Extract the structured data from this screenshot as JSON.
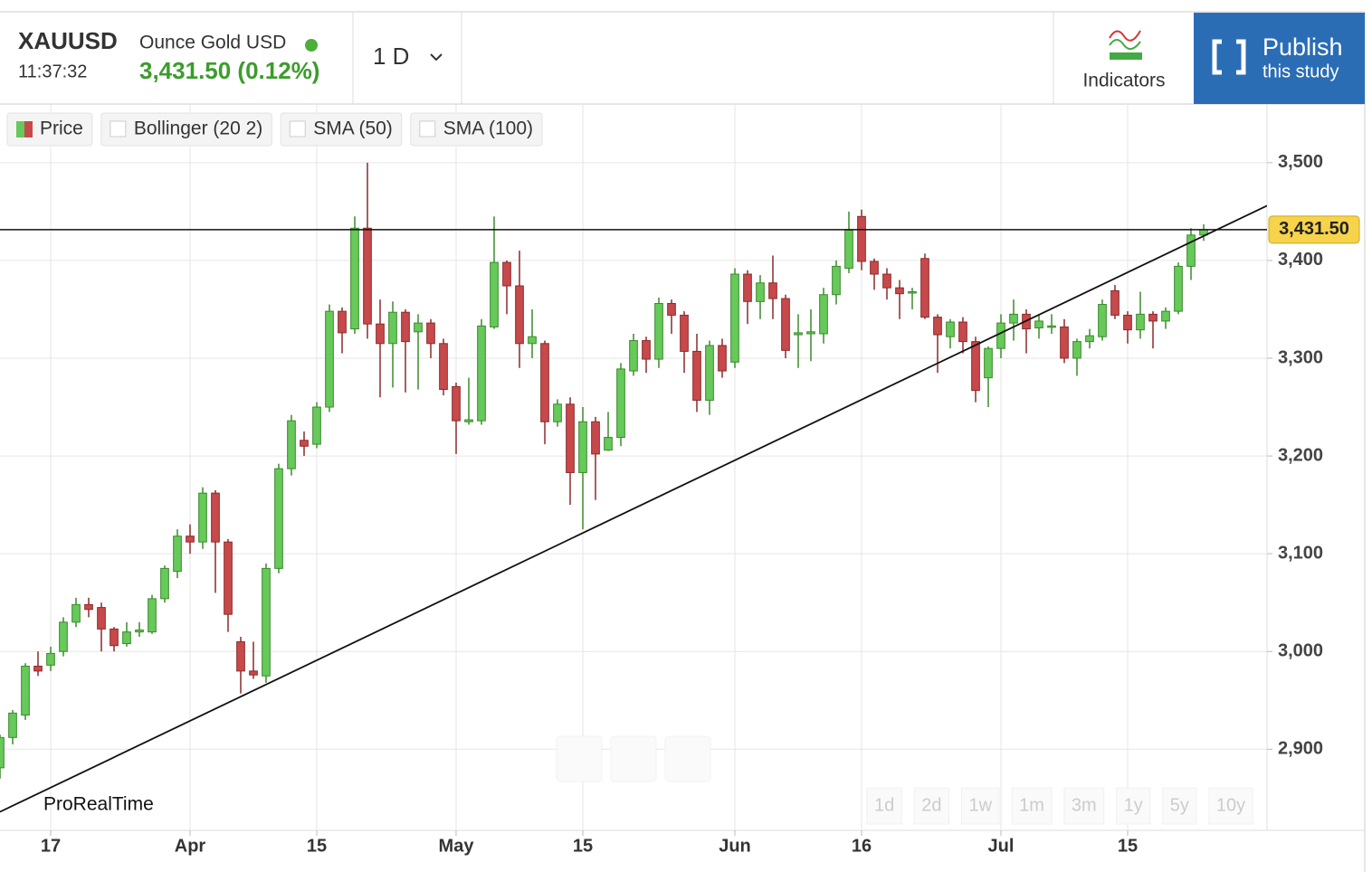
{
  "header": {
    "symbol": "XAUUSD",
    "time": "11:37:32",
    "name": "Ounce Gold USD",
    "quote": "3,431.50 (0.12%)",
    "interval": "1 D",
    "indicators": "Indicators",
    "publish": "Publish",
    "publish_sub": "this study"
  },
  "legend": [
    "Price",
    "Bollinger (20 2)",
    "SMA (50)",
    "SMA (100)"
  ],
  "ranges": [
    "1d",
    "2d",
    "1w",
    "1m",
    "3m",
    "1y",
    "5y",
    "10y"
  ],
  "watermark": "ProRealTime",
  "chart_data": {
    "type": "candlestick",
    "open": [
      2881,
      2912,
      2935,
      2985,
      2986,
      3000,
      3030,
      3048,
      3045,
      3023,
      3008,
      3020,
      3020,
      3054,
      3082,
      3118,
      3112,
      3162,
      3112,
      3010,
      2980,
      2975,
      3085,
      3187,
      3216,
      3212,
      3250,
      3348,
      3330,
      3433,
      3335,
      3315,
      3347,
      3327,
      3336,
      3315,
      3271,
      3235,
      3236,
      3332,
      3398,
      3374,
      3315,
      3315,
      3235,
      3253,
      3183,
      3235,
      3206,
      3219,
      3287,
      3318,
      3299,
      3356,
      3344,
      3307,
      3257,
      3313,
      3296,
      3386,
      3358,
      3377,
      3361,
      3324,
      3325,
      3325,
      3365,
      3392,
      3445,
      3399,
      3386,
      3372,
      3368,
      3402,
      3342,
      3322,
      3337,
      3317,
      3280,
      3310,
      3336,
      3345,
      3331,
      3332,
      3332,
      3300,
      3317,
      3322,
      3369,
      3344,
      3329,
      3345,
      3338,
      3348,
      3394,
      3426
    ],
    "high": [
      2915,
      2940,
      2988,
      3000,
      3005,
      3035,
      3055,
      3055,
      3050,
      3025,
      3030,
      3030,
      3058,
      3088,
      3125,
      3130,
      3168,
      3165,
      3115,
      3015,
      3010,
      3090,
      3192,
      3242,
      3225,
      3255,
      3355,
      3352,
      3445,
      3500,
      3360,
      3358,
      3350,
      3345,
      3340,
      3320,
      3275,
      3280,
      3340,
      3445,
      3400,
      3410,
      3350,
      3318,
      3258,
      3260,
      3250,
      3240,
      3245,
      3295,
      3325,
      3322,
      3362,
      3360,
      3348,
      3325,
      3318,
      3320,
      3392,
      3390,
      3385,
      3405,
      3365,
      3345,
      3350,
      3372,
      3400,
      3450,
      3452,
      3402,
      3392,
      3380,
      3372,
      3407,
      3345,
      3340,
      3342,
      3322,
      3312,
      3345,
      3360,
      3350,
      3345,
      3345,
      3340,
      3320,
      3330,
      3360,
      3375,
      3348,
      3368,
      3348,
      3352,
      3398,
      3433,
      3437
    ],
    "low": [
      2870,
      2905,
      2930,
      2975,
      2980,
      2995,
      3025,
      3035,
      3000,
      3000,
      3005,
      3015,
      3018,
      3050,
      3075,
      3100,
      3105,
      3060,
      3020,
      2957,
      2972,
      2968,
      3080,
      3180,
      3200,
      3208,
      3245,
      3305,
      3325,
      3320,
      3260,
      3270,
      3265,
      3268,
      3300,
      3262,
      3202,
      3232,
      3232,
      3330,
      3345,
      3290,
      3300,
      3212,
      3230,
      3150,
      3125,
      3155,
      3205,
      3210,
      3282,
      3285,
      3290,
      3325,
      3285,
      3245,
      3242,
      3280,
      3290,
      3335,
      3340,
      3340,
      3300,
      3290,
      3297,
      3315,
      3355,
      3387,
      3390,
      3370,
      3360,
      3340,
      3350,
      3340,
      3285,
      3310,
      3305,
      3255,
      3250,
      3300,
      3318,
      3305,
      3320,
      3325,
      3295,
      3282,
      3310,
      3318,
      3340,
      3315,
      3320,
      3310,
      3330,
      3345,
      3380,
      3420
    ],
    "close": [
      2912,
      2937,
      2985,
      2980,
      2998,
      3030,
      3048,
      3043,
      3023,
      3006,
      3020,
      3022,
      3054,
      3085,
      3118,
      3112,
      3162,
      3112,
      3038,
      2980,
      2976,
      3085,
      3187,
      3236,
      3210,
      3250,
      3348,
      3326,
      3433,
      3335,
      3315,
      3347,
      3317,
      3336,
      3315,
      3268,
      3236,
      3237,
      3333,
      3398,
      3374,
      3315,
      3322,
      3235,
      3253,
      3183,
      3235,
      3202,
      3219,
      3289,
      3318,
      3299,
      3356,
      3344,
      3307,
      3257,
      3313,
      3287,
      3386,
      3358,
      3377,
      3361,
      3308,
      3326,
      3327,
      3365,
      3394,
      3431,
      3399,
      3386,
      3372,
      3366,
      3368,
      3342,
      3324,
      3337,
      3317,
      3267,
      3310,
      3336,
      3345,
      3330,
      3338,
      3333,
      3300,
      3317,
      3323,
      3355,
      3344,
      3329,
      3345,
      3338,
      3348,
      3394,
      3426,
      3431.5
    ],
    "up_color": "#66c95a",
    "down_color": "#c8494b",
    "xlim": [
      0,
      100
    ],
    "xticks": [
      {
        "value": 4,
        "label": "17"
      },
      {
        "value": 15,
        "label": "Apr"
      },
      {
        "value": 25,
        "label": "15"
      },
      {
        "value": 36,
        "label": "May"
      },
      {
        "value": 46,
        "label": "15"
      },
      {
        "value": 58,
        "label": "Jun"
      },
      {
        "value": 68,
        "label": "16"
      },
      {
        "value": 79,
        "label": "Jul"
      },
      {
        "value": 89,
        "label": "15"
      }
    ],
    "ylim": [
      2817,
      3560
    ],
    "yticks": [
      {
        "value": 2900,
        "label": "2,900"
      },
      {
        "value": 3000,
        "label": "3,000"
      },
      {
        "value": 3100,
        "label": "3,100"
      },
      {
        "value": 3200,
        "label": "3,200"
      },
      {
        "value": 3300,
        "label": "3,300"
      },
      {
        "value": 3400,
        "label": "3,400"
      },
      {
        "value": 3500,
        "label": "3,500"
      }
    ],
    "last_price": 3431.5,
    "last_price_label": "3,431.50",
    "trendline": [
      [
        0,
        2836
      ],
      [
        100,
        3456
      ]
    ],
    "grid": true
  }
}
